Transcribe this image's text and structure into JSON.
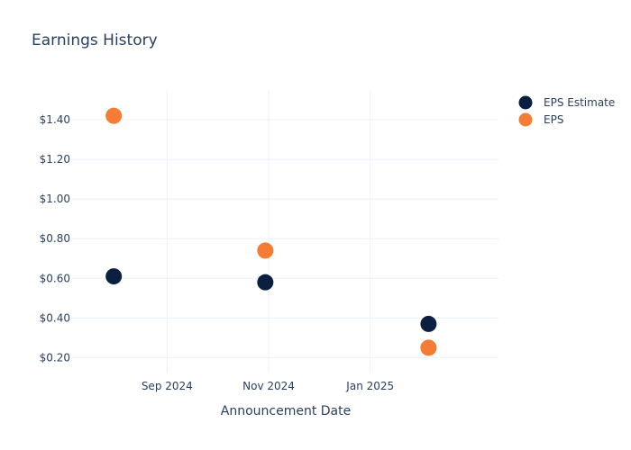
{
  "chart_data": {
    "type": "scatter",
    "title": "Earnings History",
    "xlabel": "Announcement Date",
    "ylabel": "",
    "x_ticks": [
      {
        "label": "Sep 2024",
        "date": "2024-09-01"
      },
      {
        "label": "Nov 2024",
        "date": "2024-11-01"
      },
      {
        "label": "Jan 2025",
        "date": "2025-01-01"
      }
    ],
    "y_ticks": [
      {
        "label": "$0.20",
        "value": 0.2
      },
      {
        "label": "$0.40",
        "value": 0.4
      },
      {
        "label": "$0.60",
        "value": 0.6
      },
      {
        "label": "$0.80",
        "value": 0.8
      },
      {
        "label": "$1.00",
        "value": 1.0
      },
      {
        "label": "$1.20",
        "value": 1.2
      },
      {
        "label": "$1.40",
        "value": 1.4
      }
    ],
    "xlim": [
      "2024-07-06",
      "2025-03-19"
    ],
    "ylim": [
      0.12,
      1.55
    ],
    "grid": true,
    "legend_position": "top-right",
    "series": [
      {
        "name": "EPS Estimate",
        "color": "#0b1f41",
        "points": [
          {
            "x": "2024-07-31",
            "y": 0.61
          },
          {
            "x": "2024-10-30",
            "y": 0.58
          },
          {
            "x": "2025-02-05",
            "y": 0.37
          }
        ]
      },
      {
        "name": "EPS",
        "color": "#f57c35",
        "points": [
          {
            "x": "2024-07-31",
            "y": 1.42
          },
          {
            "x": "2024-10-30",
            "y": 0.74
          },
          {
            "x": "2025-02-05",
            "y": 0.25
          }
        ]
      }
    ]
  }
}
